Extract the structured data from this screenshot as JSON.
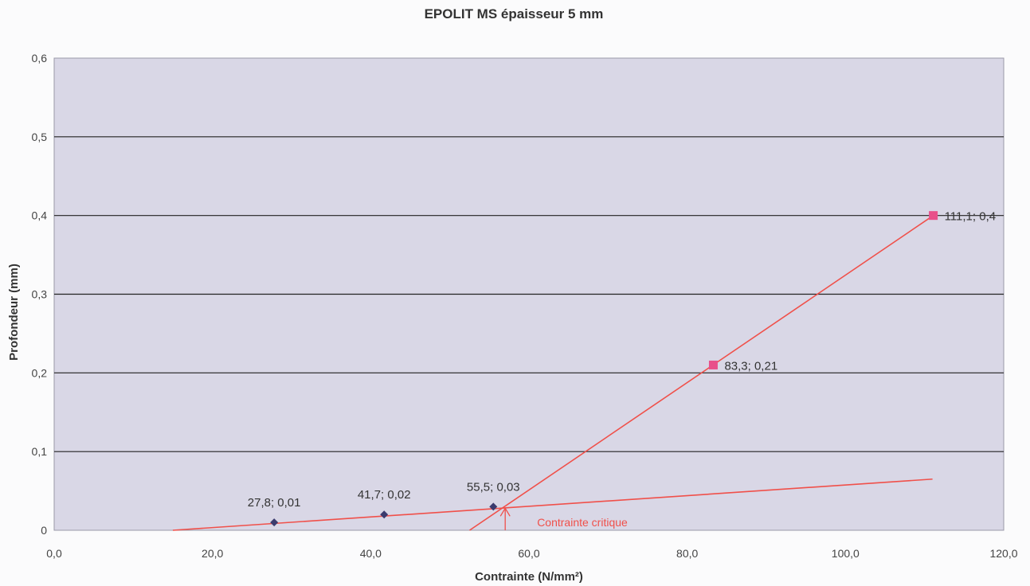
{
  "chart_data": {
    "type": "scatter",
    "title": "EPOLIT MS  épaisseur  5 mm",
    "xlabel": "Contrainte (N/mm²)",
    "ylabel": "Profondeur (mm)",
    "xlim": [
      0,
      120
    ],
    "ylim": [
      0,
      0.6
    ],
    "x_ticks": [
      0,
      20,
      40,
      60,
      80,
      100,
      120
    ],
    "x_tick_labels": [
      "0,0",
      "20,0",
      "40,0",
      "60,0",
      "80,0",
      "100,0",
      "120,0"
    ],
    "y_ticks": [
      0,
      0.1,
      0.2,
      0.3,
      0.4,
      0.5,
      0.6
    ],
    "y_tick_labels": [
      "0",
      "0,1",
      "0,2",
      "0,3",
      "0,4",
      "0,5",
      "0,6"
    ],
    "grid": "horizontal",
    "series": [
      {
        "marker": "diamond",
        "color": "#3b3b6e",
        "points": [
          {
            "x": 27.8,
            "y": 0.01,
            "label": "27,8; 0,01"
          },
          {
            "x": 41.7,
            "y": 0.02,
            "label": "41,7; 0,02"
          },
          {
            "x": 55.5,
            "y": 0.03,
            "label": "55,5; 0,03"
          }
        ]
      },
      {
        "marker": "square",
        "color": "#e8508a",
        "points": [
          {
            "x": 83.3,
            "y": 0.21,
            "label": "83,3; 0,21"
          },
          {
            "x": 111.1,
            "y": 0.4,
            "label": "111,1; 0,4"
          }
        ]
      }
    ],
    "trendlines": [
      {
        "color": "#f0504a",
        "x": [
          15,
          111
        ],
        "y": [
          0,
          0.065
        ]
      },
      {
        "color": "#f0504a",
        "x": [
          52.5,
          111.1
        ],
        "y": [
          -0.005,
          0.4
        ]
      }
    ],
    "annotation": {
      "text": "Contrainte critique",
      "x": 57,
      "y": 0.03,
      "color": "#f0504a"
    },
    "colors": {
      "plot_background": "#d9d7e6",
      "gridline": "#222222",
      "trendline": "#f0504a"
    }
  }
}
